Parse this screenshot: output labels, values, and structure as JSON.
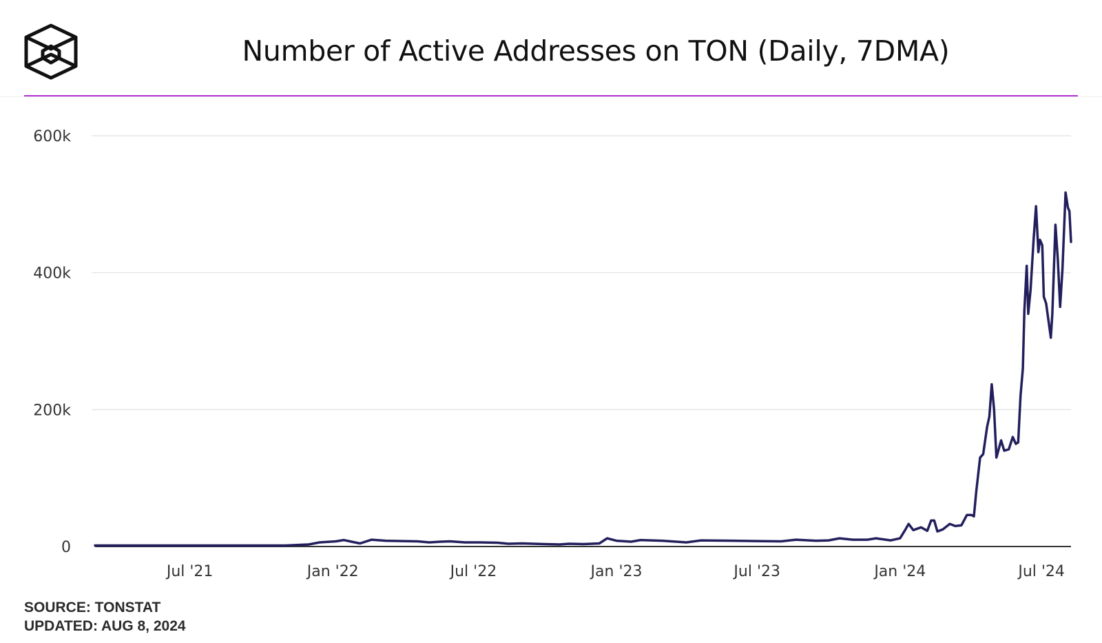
{
  "header": {
    "title": "Number of Active Addresses on TON (Daily, 7DMA)",
    "logo_icon": "cube-logo-icon"
  },
  "colors": {
    "accent_rule": "#b232d0",
    "line": "#221f5c",
    "grid": "#e6e6e6",
    "axis": "#333333"
  },
  "chart_data": {
    "type": "line",
    "title": "Number of Active Addresses on TON (Daily, 7DMA)",
    "xlabel": "",
    "ylabel": "",
    "grid": true,
    "ylim": [
      0,
      600000
    ],
    "xlim": [
      "2021-03-01",
      "2024-08-08"
    ],
    "y_ticks": [
      {
        "value": 0,
        "label": "0"
      },
      {
        "value": 200000,
        "label": "200k"
      },
      {
        "value": 400000,
        "label": "400k"
      },
      {
        "value": 600000,
        "label": "600k"
      }
    ],
    "x_ticks": [
      {
        "date": "2021-07-01",
        "label": "Jul '21"
      },
      {
        "date": "2022-01-01",
        "label": "Jan '22"
      },
      {
        "date": "2022-07-01",
        "label": "Jul '22"
      },
      {
        "date": "2023-01-01",
        "label": "Jan '23"
      },
      {
        "date": "2023-07-01",
        "label": "Jul '23"
      },
      {
        "date": "2024-01-01",
        "label": "Jan '24"
      },
      {
        "date": "2024-07-01",
        "label": "Jul '24"
      }
    ],
    "series": [
      {
        "points": [
          [
            "2021-03-01",
            1500
          ],
          [
            "2021-07-01",
            1500
          ],
          [
            "2021-11-01",
            1500
          ],
          [
            "2021-12-01",
            3000
          ],
          [
            "2021-12-15",
            6000
          ],
          [
            "2022-01-05",
            7500
          ],
          [
            "2022-01-15",
            9500
          ],
          [
            "2022-01-25",
            7000
          ],
          [
            "2022-02-05",
            4500
          ],
          [
            "2022-02-20",
            10000
          ],
          [
            "2022-03-10",
            8500
          ],
          [
            "2022-04-01",
            8000
          ],
          [
            "2022-04-20",
            7500
          ],
          [
            "2022-05-05",
            6000
          ],
          [
            "2022-05-20",
            7000
          ],
          [
            "2022-06-01",
            7500
          ],
          [
            "2022-06-20",
            6000
          ],
          [
            "2022-07-10",
            6000
          ],
          [
            "2022-08-01",
            5500
          ],
          [
            "2022-08-15",
            4000
          ],
          [
            "2022-09-01",
            4500
          ],
          [
            "2022-10-01",
            3500
          ],
          [
            "2022-10-20",
            3000
          ],
          [
            "2022-11-01",
            4000
          ],
          [
            "2022-11-20",
            3500
          ],
          [
            "2022-12-10",
            4500
          ],
          [
            "2022-12-20",
            12000
          ],
          [
            "2023-01-01",
            8500
          ],
          [
            "2023-01-20",
            7000
          ],
          [
            "2023-02-01",
            9500
          ],
          [
            "2023-03-01",
            8500
          ],
          [
            "2023-04-01",
            6000
          ],
          [
            "2023-04-20",
            9000
          ],
          [
            "2023-06-01",
            8500
          ],
          [
            "2023-07-01",
            8000
          ],
          [
            "2023-08-01",
            7500
          ],
          [
            "2023-08-20",
            10000
          ],
          [
            "2023-09-15",
            8500
          ],
          [
            "2023-10-01",
            9000
          ],
          [
            "2023-10-15",
            12000
          ],
          [
            "2023-11-01",
            10000
          ],
          [
            "2023-11-20",
            10000
          ],
          [
            "2023-12-01",
            12000
          ],
          [
            "2023-12-20",
            9000
          ],
          [
            "2024-01-01",
            12000
          ],
          [
            "2024-01-08",
            25000
          ],
          [
            "2024-01-12",
            33000
          ],
          [
            "2024-01-18",
            24000
          ],
          [
            "2024-01-28",
            28000
          ],
          [
            "2024-02-05",
            23000
          ],
          [
            "2024-02-10",
            38000
          ],
          [
            "2024-02-14",
            38000
          ],
          [
            "2024-02-18",
            22000
          ],
          [
            "2024-02-25",
            25000
          ],
          [
            "2024-03-05",
            33000
          ],
          [
            "2024-03-12",
            30000
          ],
          [
            "2024-03-20",
            31000
          ],
          [
            "2024-03-27",
            46000
          ],
          [
            "2024-04-02",
            46000
          ],
          [
            "2024-04-05",
            44000
          ],
          [
            "2024-04-08",
            80000
          ],
          [
            "2024-04-13",
            130000
          ],
          [
            "2024-04-17",
            135000
          ],
          [
            "2024-04-22",
            175000
          ],
          [
            "2024-04-25",
            190000
          ],
          [
            "2024-04-28",
            237000
          ],
          [
            "2024-05-01",
            200000
          ],
          [
            "2024-05-04",
            130000
          ],
          [
            "2024-05-10",
            155000
          ],
          [
            "2024-05-14",
            140000
          ],
          [
            "2024-05-20",
            142000
          ],
          [
            "2024-05-25",
            160000
          ],
          [
            "2024-05-29",
            150000
          ],
          [
            "2024-06-01",
            152000
          ],
          [
            "2024-06-04",
            220000
          ],
          [
            "2024-06-07",
            260000
          ],
          [
            "2024-06-09",
            345000
          ],
          [
            "2024-06-12",
            410000
          ],
          [
            "2024-06-14",
            340000
          ],
          [
            "2024-06-17",
            375000
          ],
          [
            "2024-06-21",
            450000
          ],
          [
            "2024-06-24",
            497000
          ],
          [
            "2024-06-27",
            430000
          ],
          [
            "2024-06-29",
            448000
          ],
          [
            "2024-07-02",
            440000
          ],
          [
            "2024-07-04",
            365000
          ],
          [
            "2024-07-07",
            355000
          ],
          [
            "2024-07-10",
            330000
          ],
          [
            "2024-07-13",
            305000
          ],
          [
            "2024-07-15",
            340000
          ],
          [
            "2024-07-19",
            470000
          ],
          [
            "2024-07-22",
            420000
          ],
          [
            "2024-07-25",
            350000
          ],
          [
            "2024-07-28",
            405000
          ],
          [
            "2024-08-01",
            517000
          ],
          [
            "2024-08-04",
            495000
          ],
          [
            "2024-08-06",
            490000
          ],
          [
            "2024-08-08",
            445000
          ]
        ]
      }
    ]
  },
  "footer": {
    "source": "SOURCE: TONSTAT",
    "updated": "UPDATED: AUG 8, 2024"
  }
}
